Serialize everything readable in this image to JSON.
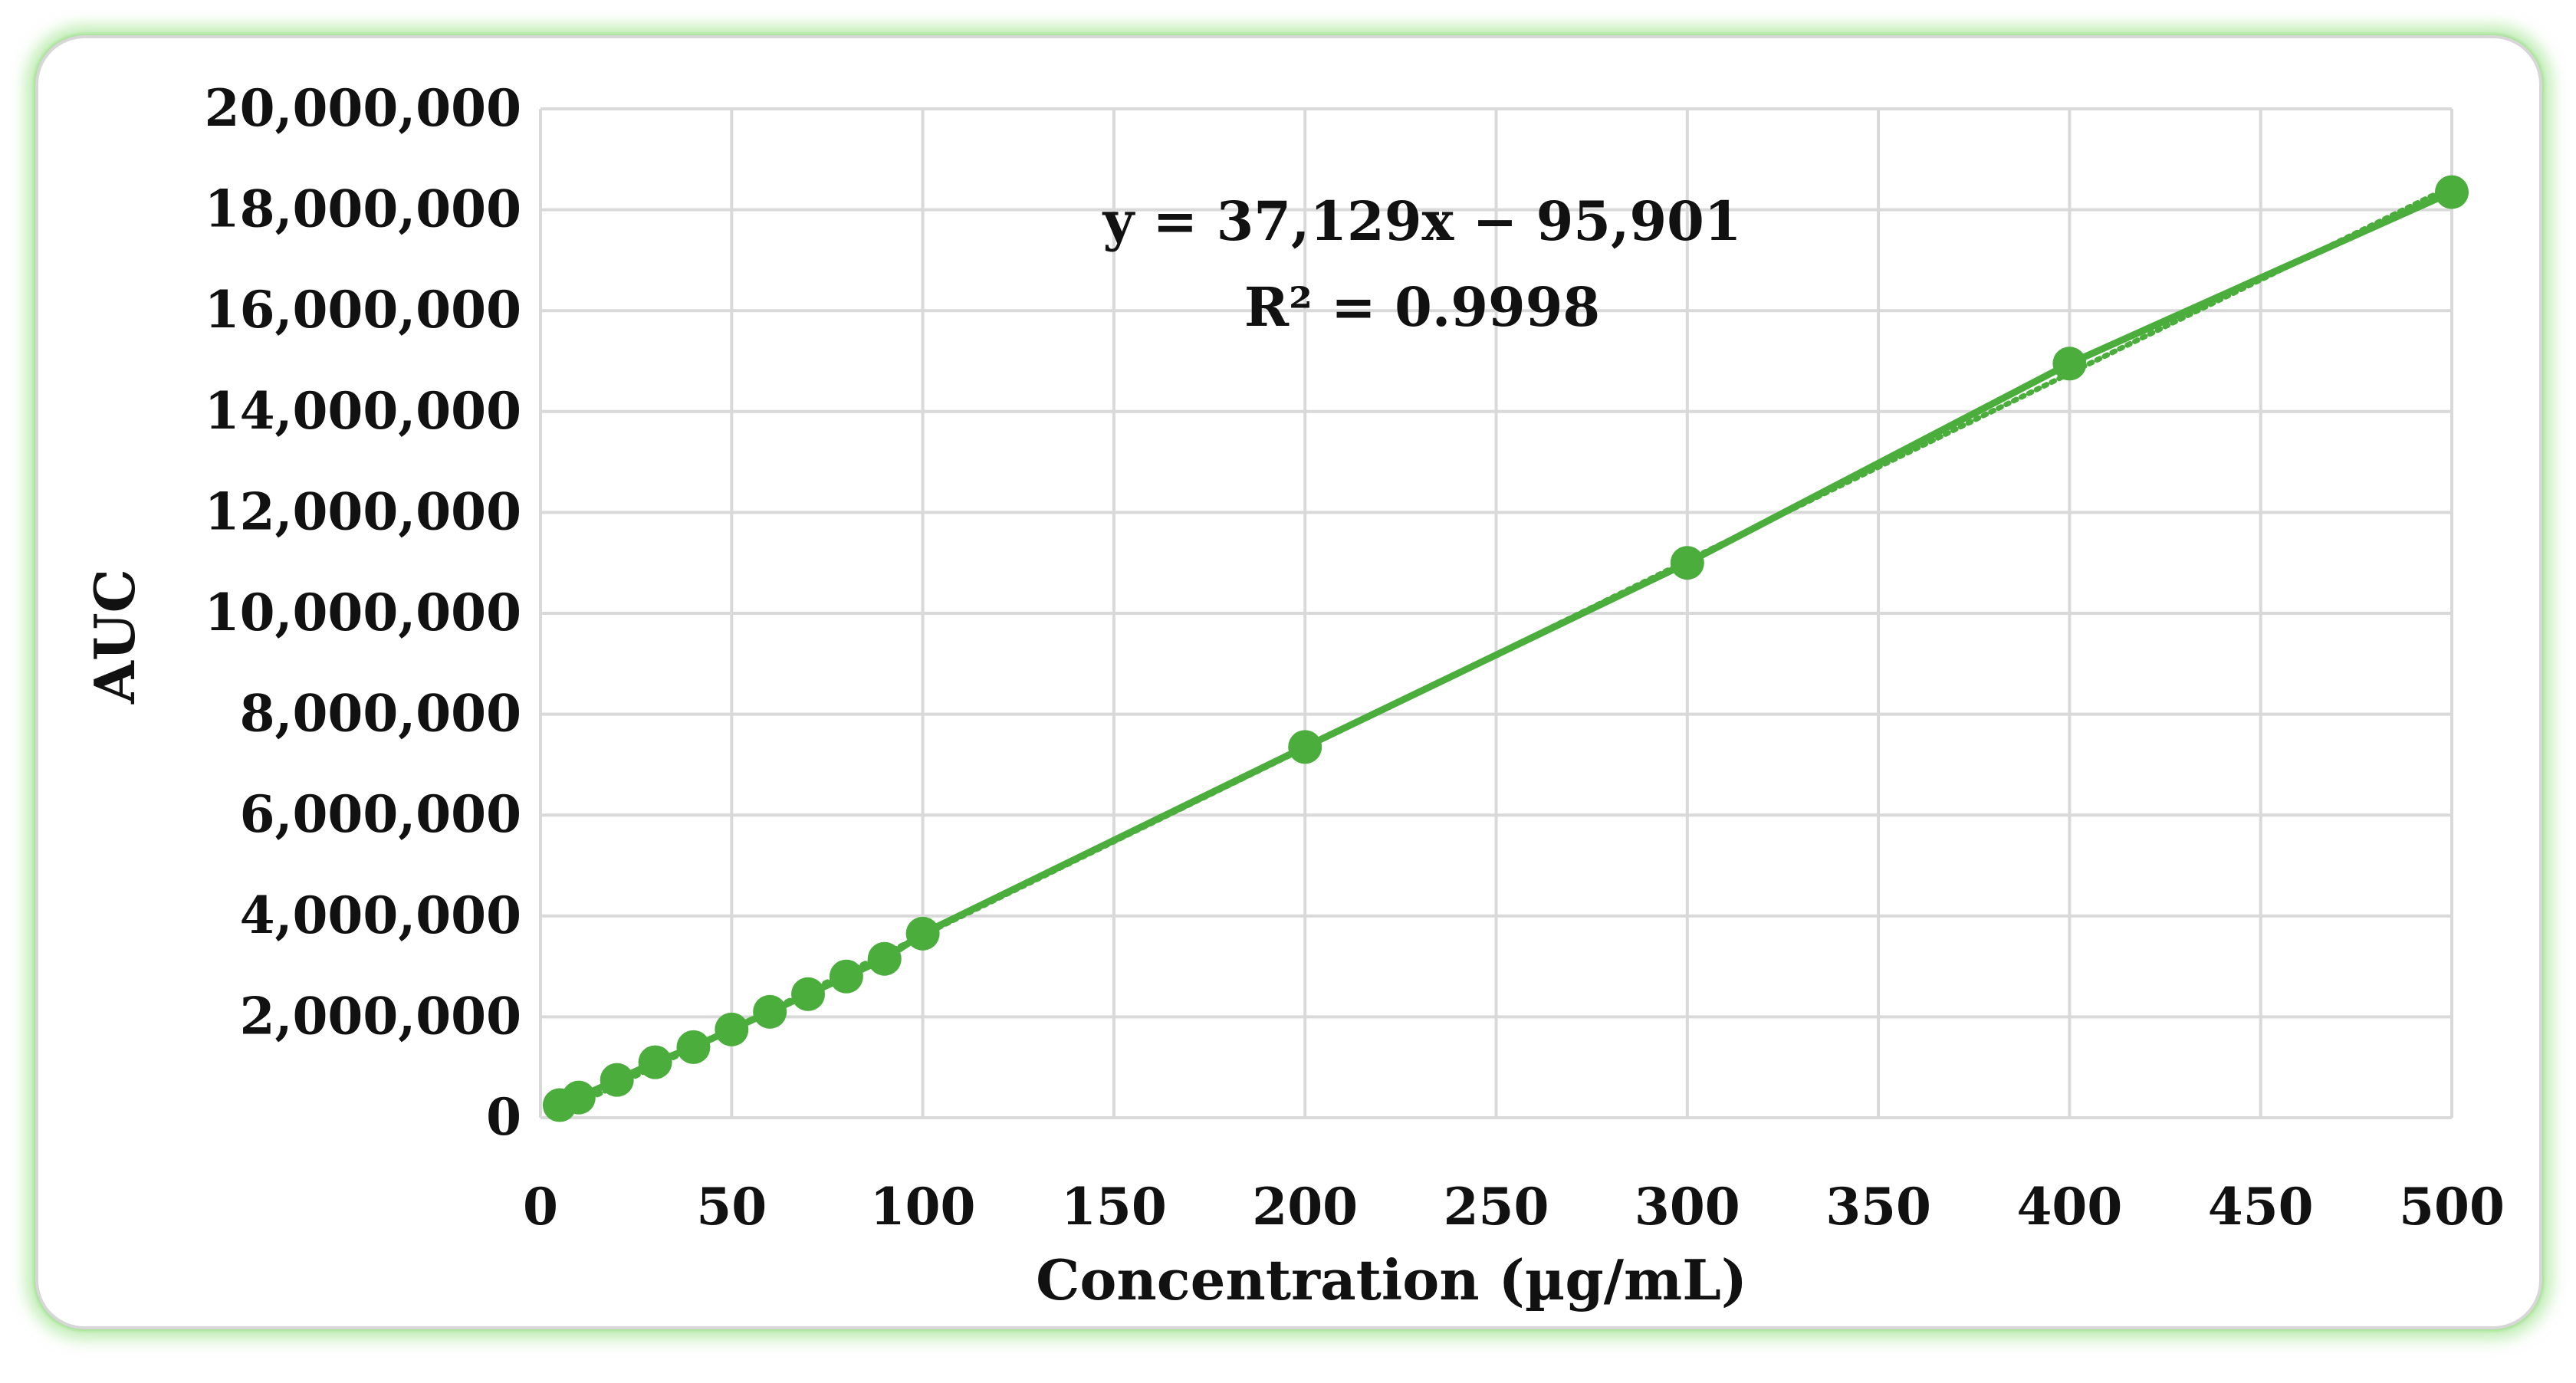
{
  "chart_data": {
    "type": "scatter",
    "title": "",
    "xlabel": "Concentration (µg/mL)",
    "ylabel": "AUC",
    "xlim": [
      0,
      500
    ],
    "ylim": [
      0,
      20000000
    ],
    "x_ticks": [
      0,
      50,
      100,
      150,
      200,
      250,
      300,
      350,
      400,
      450,
      500
    ],
    "x_tick_labels": [
      "0",
      "50",
      "100",
      "150",
      "200",
      "250",
      "300",
      "350",
      "400",
      "450",
      "500"
    ],
    "y_ticks": [
      0,
      2000000,
      4000000,
      6000000,
      8000000,
      10000000,
      12000000,
      14000000,
      16000000,
      18000000,
      20000000
    ],
    "y_tick_labels": [
      "0",
      "2,000,000",
      "4,000,000",
      "6,000,000",
      "8,000,000",
      "10,000,000",
      "12,000,000",
      "14,000,000",
      "16,000,000",
      "18,000,000",
      "20,000,000"
    ],
    "grid": true,
    "legend": "none",
    "series": [
      {
        "name": "AUC",
        "color": "#4aad3c",
        "connected": true,
        "points": [
          {
            "x": 5,
            "y": 250000
          },
          {
            "x": 10,
            "y": 400000
          },
          {
            "x": 20,
            "y": 750000
          },
          {
            "x": 30,
            "y": 1100000
          },
          {
            "x": 40,
            "y": 1400000
          },
          {
            "x": 50,
            "y": 1750000
          },
          {
            "x": 60,
            "y": 2100000
          },
          {
            "x": 70,
            "y": 2450000
          },
          {
            "x": 80,
            "y": 2800000
          },
          {
            "x": 90,
            "y": 3150000
          },
          {
            "x": 100,
            "y": 3650000
          },
          {
            "x": 200,
            "y": 7350000
          },
          {
            "x": 300,
            "y": 11000000
          },
          {
            "x": 400,
            "y": 14950000
          },
          {
            "x": 500,
            "y": 18350000
          }
        ]
      }
    ],
    "trendline": {
      "type": "linear",
      "slope": 37129,
      "intercept": -95901,
      "color": "#4aad3c",
      "style": "dotted",
      "x_range": [
        5,
        500
      ]
    },
    "annotations": {
      "equation": "y = 37,129x − 95,901",
      "r_squared": "R² = 0.9998"
    }
  },
  "colors": {
    "grid": "#d9d9d9",
    "accent": "#4aad3c",
    "frame_glow": "#96e282"
  }
}
